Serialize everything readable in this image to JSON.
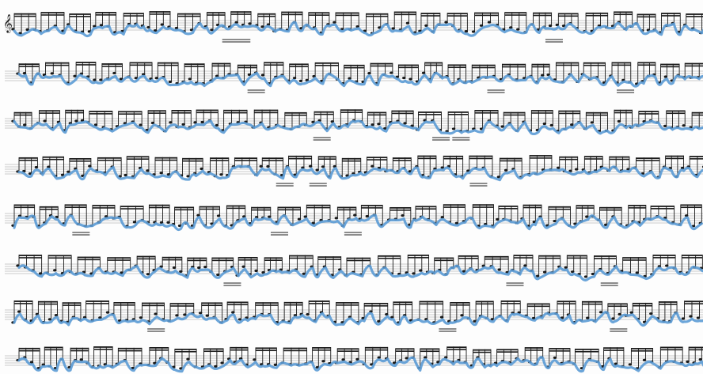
{
  "page": {
    "background": "#fdfdfd",
    "ink_color": "#1a1a1a",
    "contour_color": "#5b9bd5",
    "staff_count": 8
  },
  "clef": {
    "glyph": "𝄞",
    "icon": "treble-clef-icon"
  }
}
